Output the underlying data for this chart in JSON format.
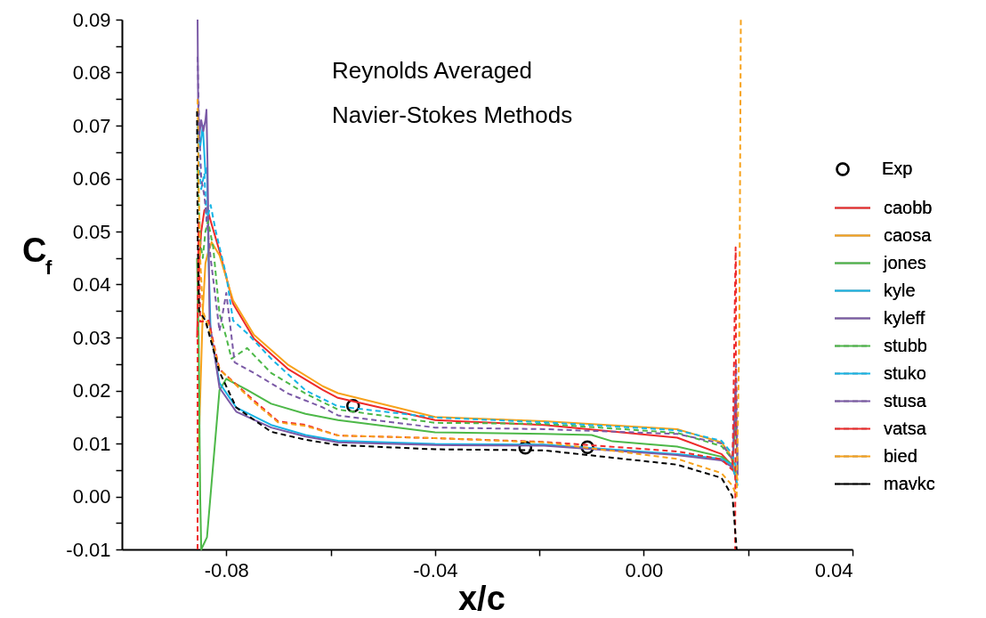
{
  "chart_data": {
    "type": "line",
    "title": "Reynolds Averaged\nNavier-Stokes Methods",
    "xlabel": "x/c",
    "ylabel": "C$_{f}$",
    "xlim": [
      -0.1,
      0.04
    ],
    "ylim": [
      -0.01,
      0.09
    ],
    "xticks": [
      -0.08,
      {
        "value": -0.06,
        "label": null
      },
      -0.04,
      {
        "value": -0.02,
        "label": null
      },
      {
        "value": 0,
        "label": "0.00"
      },
      {
        "value": 0.02,
        "label": null
      },
      0.04
    ],
    "yticks": [
      -0.01,
      {
        "value": -0.005,
        "label": null
      },
      {
        "value": 0,
        "label": "0.00"
      },
      {
        "value": 0.005,
        "label": null
      },
      0.01,
      {
        "value": 0.015,
        "label": null
      },
      0.02,
      {
        "value": 0.025,
        "label": null
      },
      0.03,
      {
        "value": 0.035,
        "label": null
      },
      0.04,
      {
        "value": 0.045,
        "label": null
      },
      0.05,
      {
        "value": 0.055,
        "label": null
      },
      0.06,
      {
        "value": 0.065,
        "label": null
      },
      0.07,
      {
        "value": 0.075,
        "label": null
      },
      0.08,
      {
        "value": 0.085,
        "label": null
      },
      0.09
    ],
    "grid": false,
    "legend": "right",
    "series": [
      {
        "name": "Exp",
        "type": "scatter",
        "marker": "circle",
        "color": "#000000",
        "x": [
          -0.0557,
          -0.0227,
          -0.0108
        ],
        "values": [
          0.0171,
          0.0092,
          0.0093
        ]
      },
      {
        "name": "caobb",
        "line_style": "solid",
        "color": "#ee2a2a",
        "x": [
          -0.0856,
          -0.0853,
          -0.0848,
          -0.0842,
          -0.0837,
          -0.083,
          -0.0813,
          -0.0787,
          -0.0747,
          -0.0681,
          -0.0615,
          -0.0586,
          -0.04,
          -0.0191,
          0.0064,
          0.0149,
          0.0168,
          0.0175,
          0.0178
        ],
        "values": [
          0.03,
          0.042,
          0.05,
          0.054,
          0.0545,
          0.052,
          0.0463,
          0.0364,
          0.0298,
          0.024,
          0.0201,
          0.0186,
          0.0144,
          0.0135,
          0.0111,
          0.008,
          0.006,
          0.004,
          0.002
        ]
      },
      {
        "name": "caosa",
        "line_style": "solid",
        "color": "#f7a21b",
        "x": [
          -0.0853,
          -0.0845,
          -0.084,
          -0.0835,
          -0.0828,
          -0.0813,
          -0.0787,
          -0.0747,
          -0.0681,
          -0.0615,
          -0.0586,
          -0.04,
          -0.0191,
          0.0064,
          0.0149,
          0.0165,
          0.0175,
          0.018
        ],
        "values": [
          0.009,
          0.035,
          0.044,
          0.046,
          0.048,
          0.0455,
          0.037,
          0.0305,
          0.0248,
          0.0208,
          0.0195,
          0.015,
          0.0142,
          0.0127,
          0.0102,
          0.008,
          0.005,
          0.003
        ]
      },
      {
        "name": "jones",
        "line_style": "solid",
        "color": "#4db848",
        "x": [
          -0.0856,
          -0.0853,
          -0.085,
          -0.0848,
          -0.0837,
          -0.0813,
          -0.08,
          -0.076,
          -0.0714,
          -0.0648,
          -0.0586,
          -0.04,
          -0.0191,
          -0.01,
          -0.006,
          0.0064,
          0.0149,
          0.017,
          0.0176,
          0.018
        ],
        "values": [
          0.045,
          0.03,
          0.0,
          -0.01,
          -0.0077,
          0.0201,
          0.0222,
          0.0201,
          0.0175,
          0.0156,
          0.0144,
          0.0121,
          0.0118,
          0.0116,
          0.0104,
          0.0094,
          0.0075,
          0.006,
          0.015,
          0.005
        ]
      },
      {
        "name": "kyle",
        "line_style": "solid",
        "color": "#16b4e5",
        "x": [
          -0.0855,
          -0.085,
          -0.0845,
          -0.084,
          -0.0837,
          -0.0834,
          -0.083,
          -0.0813,
          -0.0781,
          -0.0714,
          -0.0648,
          -0.0586,
          -0.04,
          -0.0191,
          0.0064,
          0.0149,
          0.0168,
          0.0175,
          0.018
        ],
        "values": [
          0.07,
          0.066,
          0.07,
          0.061,
          0.062,
          0.045,
          0.031,
          0.0214,
          0.0168,
          0.0135,
          0.0116,
          0.0105,
          0.0099,
          0.0098,
          0.008,
          0.0071,
          0.006,
          0.004,
          0.002
        ]
      },
      {
        "name": "kyleff",
        "line_style": "solid",
        "color": "#7b5aa6",
        "x": [
          -0.0855,
          -0.0854,
          -0.0852,
          -0.0848,
          -0.0844,
          -0.084,
          -0.0838,
          -0.0836,
          -0.0832,
          -0.0813,
          -0.0781,
          -0.0714,
          -0.0648,
          -0.0586,
          -0.04,
          -0.0191,
          0.0064,
          0.0149,
          0.017,
          0.0176,
          0.018
        ],
        "values": [
          0.09,
          0.075,
          0.068,
          0.071,
          0.069,
          0.071,
          0.073,
          0.063,
          0.033,
          0.0205,
          0.016,
          0.013,
          0.0113,
          0.0102,
          0.0097,
          0.0096,
          0.0078,
          0.0068,
          0.0055,
          0.021,
          0.004
        ]
      },
      {
        "name": "stubb",
        "line_style": "dashed",
        "color": "#4db848",
        "x": [
          -0.0855,
          -0.085,
          -0.0845,
          -0.084,
          -0.0835,
          -0.0825,
          -0.0813,
          -0.08,
          -0.079,
          -0.076,
          -0.0714,
          -0.0648,
          -0.0586,
          -0.04,
          -0.0191,
          0.0064,
          0.0149,
          0.017,
          0.0178
        ],
        "values": [
          0.062,
          0.048,
          0.045,
          0.05,
          0.052,
          0.047,
          0.0345,
          0.03,
          0.026,
          0.028,
          0.0233,
          0.0194,
          0.0164,
          0.0139,
          0.0137,
          0.012,
          0.0095,
          0.007,
          0.004
        ]
      },
      {
        "name": "stuko",
        "line_style": "dashed",
        "color": "#16b4e5",
        "x": [
          -0.0855,
          -0.0852,
          -0.0848,
          -0.0842,
          -0.0838,
          -0.083,
          -0.082,
          -0.08,
          -0.0787,
          -0.076,
          -0.0714,
          -0.0648,
          -0.0586,
          -0.04,
          -0.0191,
          0.0064,
          0.0149,
          0.017,
          0.0178
        ],
        "values": [
          0.07,
          0.062,
          0.058,
          0.061,
          0.052,
          0.055,
          0.05,
          0.0417,
          0.0332,
          0.0308,
          0.026,
          0.02,
          0.017,
          0.0149,
          0.014,
          0.0125,
          0.0105,
          0.008,
          0.005
        ]
      },
      {
        "name": "stusa",
        "line_style": "dashed",
        "color": "#7b5aa6",
        "x": [
          -0.0855,
          -0.0852,
          -0.0848,
          -0.0842,
          -0.083,
          -0.0813,
          -0.08,
          -0.0784,
          -0.0747,
          -0.0681,
          -0.0615,
          -0.0586,
          -0.04,
          -0.0191,
          0.0064,
          0.0149,
          0.017,
          0.0177,
          0.018
        ],
        "values": [
          0.083,
          0.07,
          0.06,
          0.0567,
          0.045,
          0.0312,
          0.0384,
          0.0253,
          0.0233,
          0.0194,
          0.0168,
          0.0153,
          0.013,
          0.0127,
          0.0118,
          0.01,
          0.007,
          0.025,
          0.005
        ]
      },
      {
        "name": "vatsa",
        "line_style": "dashed",
        "color": "#ee2a2a",
        "x": [
          -0.0855,
          -0.0855,
          -0.0853,
          -0.085,
          -0.0834,
          -0.0813,
          -0.0747,
          -0.0701,
          -0.0648,
          -0.0586,
          -0.04,
          -0.0191,
          0.0064,
          0.0149,
          0.017,
          0.0176,
          0.0177,
          0.0175
        ],
        "values": [
          -0.01,
          0.035,
          0.052,
          0.033,
          0.0332,
          0.024,
          0.0181,
          0.0142,
          0.0135,
          0.0115,
          0.011,
          0.0103,
          0.0085,
          0.007,
          0.005,
          0.047,
          0.04,
          -0.01
        ]
      },
      {
        "name": "bied",
        "line_style": "dashed",
        "color": "#f7a21b",
        "x": [
          -0.0855,
          -0.0853,
          -0.085,
          -0.0845,
          -0.0834,
          -0.0813,
          -0.0747,
          -0.0701,
          -0.0648,
          -0.0586,
          -0.04,
          -0.0191,
          0.0064,
          0.0149,
          0.017,
          0.0178,
          0.0183,
          0.0186
        ],
        "values": [
          0.075,
          0.06,
          0.045,
          0.035,
          0.032,
          0.024,
          0.0178,
          0.014,
          0.0133,
          0.0115,
          0.011,
          0.0102,
          0.0071,
          0.0044,
          0.002,
          0.0,
          0.03,
          0.09
        ]
      },
      {
        "name": "mavkc",
        "line_style": "dashed",
        "color": "#000000",
        "x": [
          -0.0856,
          -0.0855,
          -0.0852,
          -0.084,
          -0.0813,
          -0.0781,
          -0.0714,
          -0.0648,
          -0.0586,
          -0.04,
          -0.0191,
          0.0064,
          0.0149,
          0.017,
          0.0178
        ],
        "values": [
          0.0727,
          0.05,
          0.035,
          0.0332,
          0.0235,
          0.0168,
          0.0122,
          0.0107,
          0.0097,
          0.0089,
          0.0087,
          0.006,
          0.0035,
          0.0,
          -0.01
        ]
      }
    ]
  }
}
